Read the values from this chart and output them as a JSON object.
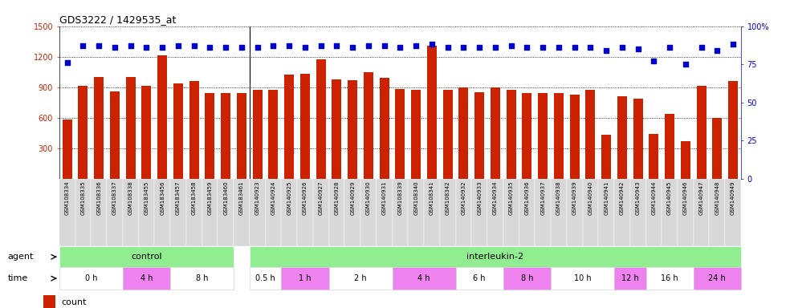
{
  "title": "GDS3222 / 1429535_at",
  "samples": [
    "GSM108334",
    "GSM108335",
    "GSM108336",
    "GSM108337",
    "GSM108338",
    "GSM183455",
    "GSM183456",
    "GSM183457",
    "GSM183458",
    "GSM183459",
    "GSM183460",
    "GSM183461",
    "GSM140923",
    "GSM140924",
    "GSM140925",
    "GSM140926",
    "GSM140927",
    "GSM140928",
    "GSM140929",
    "GSM140930",
    "GSM140931",
    "GSM108339",
    "GSM108340",
    "GSM108341",
    "GSM108342",
    "GSM140932",
    "GSM140933",
    "GSM140934",
    "GSM140935",
    "GSM140936",
    "GSM140937",
    "GSM140938",
    "GSM140939",
    "GSM140940",
    "GSM140941",
    "GSM140942",
    "GSM140943",
    "GSM140944",
    "GSM140945",
    "GSM140946",
    "GSM140947",
    "GSM140948",
    "GSM140949"
  ],
  "counts": [
    580,
    910,
    1000,
    860,
    1000,
    910,
    1210,
    940,
    960,
    840,
    840,
    840,
    870,
    870,
    1020,
    1030,
    1170,
    980,
    970,
    1050,
    990,
    880,
    875,
    1310,
    870,
    900,
    850,
    900,
    870,
    840,
    840,
    840,
    830,
    870,
    430,
    810,
    790,
    440,
    640,
    370,
    910,
    600,
    960
  ],
  "percentiles": [
    76,
    87,
    87,
    86,
    87,
    86,
    86,
    87,
    87,
    86,
    86,
    86,
    86,
    87,
    87,
    86,
    87,
    87,
    86,
    87,
    87,
    86,
    87,
    88,
    86,
    86,
    86,
    86,
    87,
    86,
    86,
    86,
    86,
    86,
    84,
    86,
    85,
    77,
    86,
    75,
    86,
    84,
    88
  ],
  "ylim_left": [
    0,
    1500
  ],
  "ylim_right": [
    0,
    100
  ],
  "yticks_left": [
    300,
    600,
    900,
    1200,
    1500
  ],
  "yticks_right": [
    0,
    25,
    50,
    75,
    100
  ],
  "bar_color": "#cc2200",
  "dot_color": "#0000cc",
  "agent_groups": [
    {
      "label": "control",
      "start": 0,
      "end": 11,
      "color": "#90ee90"
    },
    {
      "label": "interleukin-2",
      "start": 12,
      "end": 43,
      "color": "#90ee90"
    }
  ],
  "time_groups": [
    {
      "label": "0 h",
      "start": 0,
      "end": 4,
      "color": "#ffffff"
    },
    {
      "label": "4 h",
      "start": 4,
      "end": 7,
      "color": "#ee82ee"
    },
    {
      "label": "8 h",
      "start": 7,
      "end": 11,
      "color": "#ffffff"
    },
    {
      "label": "0.5 h",
      "start": 12,
      "end": 14,
      "color": "#ffffff"
    },
    {
      "label": "1 h",
      "start": 14,
      "end": 17,
      "color": "#ee82ee"
    },
    {
      "label": "2 h",
      "start": 17,
      "end": 21,
      "color": "#ffffff"
    },
    {
      "label": "4 h",
      "start": 21,
      "end": 25,
      "color": "#ee82ee"
    },
    {
      "label": "6 h",
      "start": 25,
      "end": 28,
      "color": "#ffffff"
    },
    {
      "label": "8 h",
      "start": 28,
      "end": 31,
      "color": "#ee82ee"
    },
    {
      "label": "10 h",
      "start": 31,
      "end": 35,
      "color": "#ffffff"
    },
    {
      "label": "12 h",
      "start": 35,
      "end": 37,
      "color": "#ee82ee"
    },
    {
      "label": "16 h",
      "start": 37,
      "end": 40,
      "color": "#ffffff"
    },
    {
      "label": "24 h",
      "start": 40,
      "end": 43,
      "color": "#ee82ee"
    }
  ],
  "sep_index": 11.5,
  "right_axis_label": "100%",
  "grid_color": "#000000",
  "grid_linestyle": ":",
  "grid_linewidth": 0.6
}
